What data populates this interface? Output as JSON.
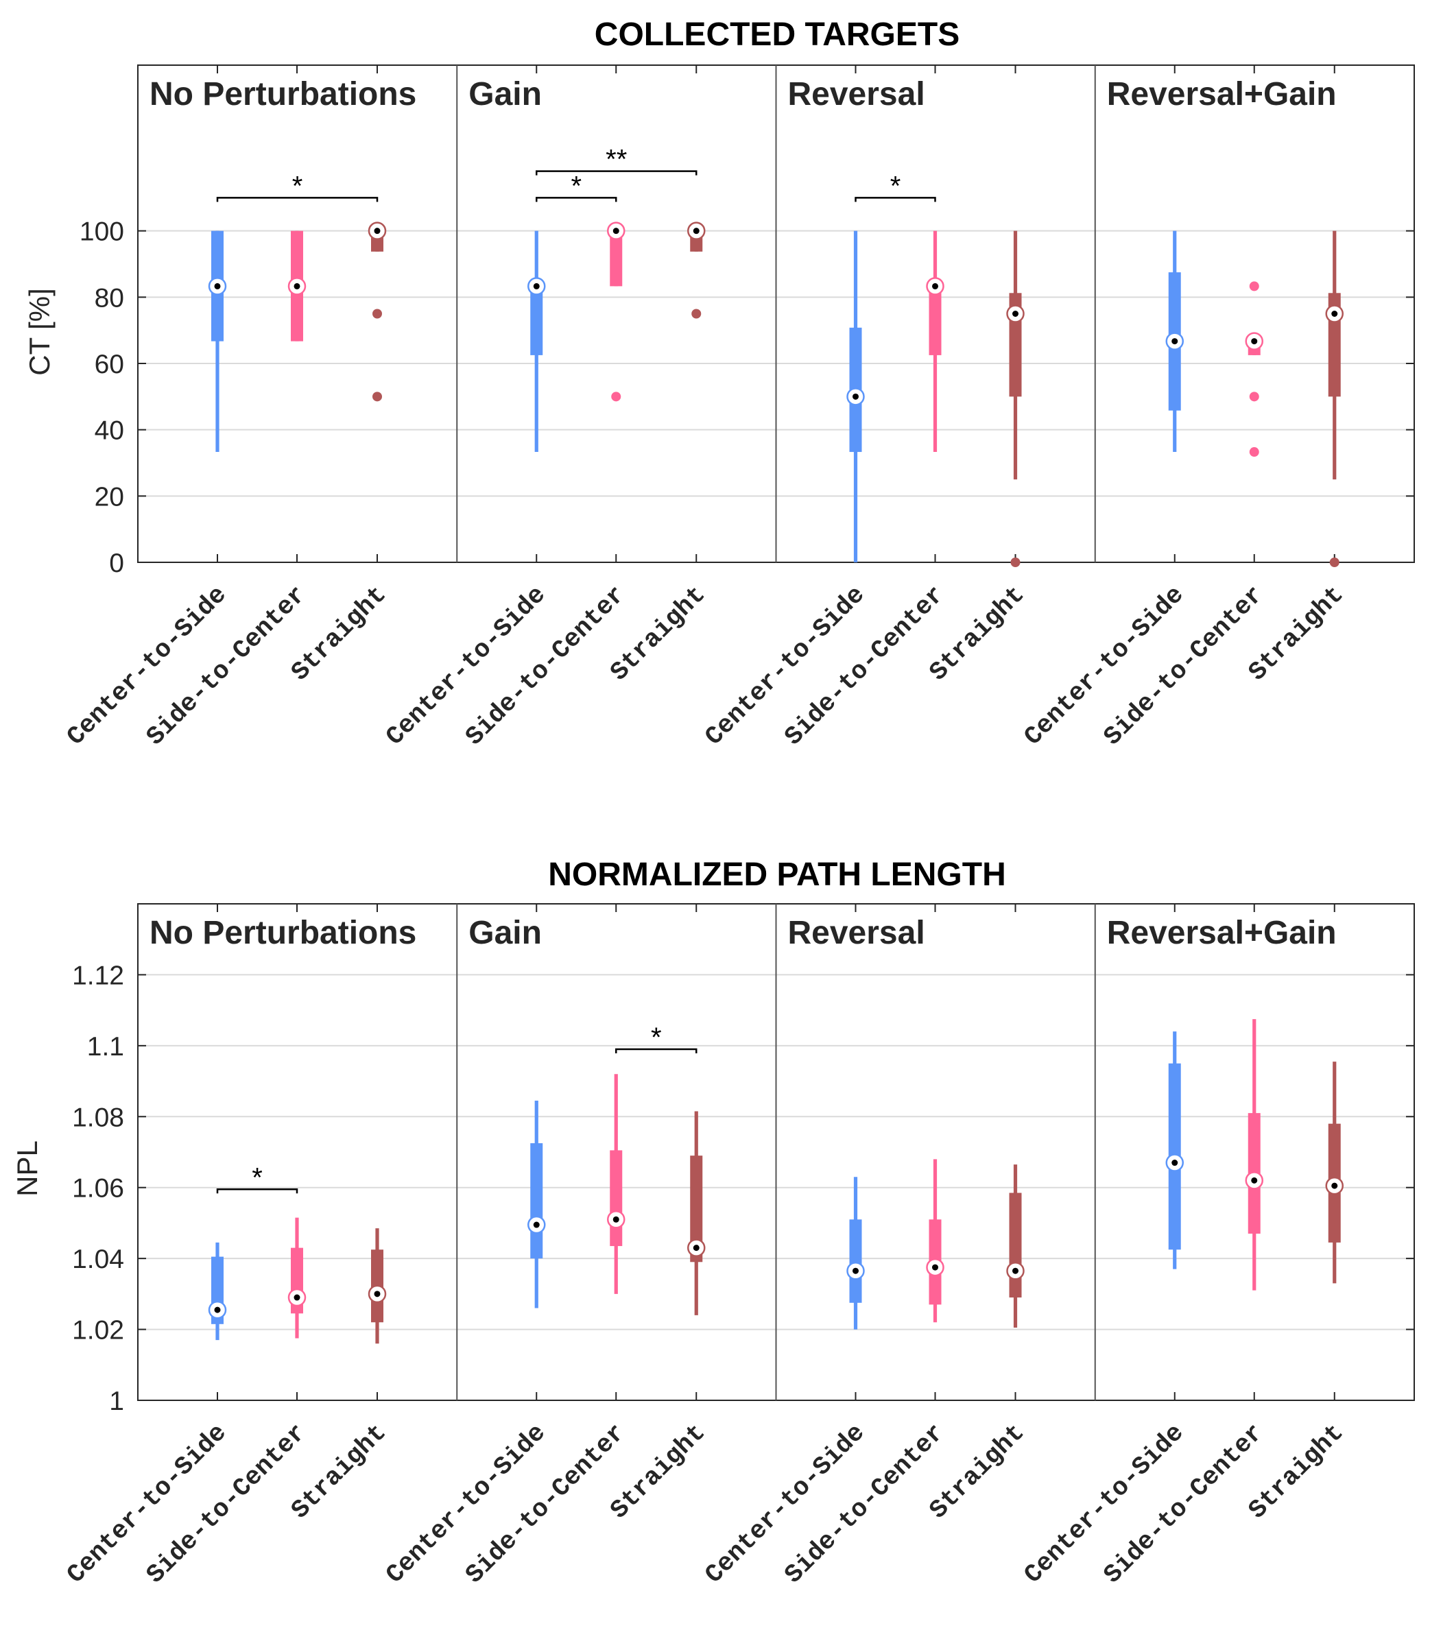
{
  "colors": {
    "Center-to-Side": "#5b95f9",
    "Side-to-Center": "#ff6396",
    "Straight": "#b05656",
    "grid": "#dadada",
    "axis": "#262626"
  },
  "chart_data": [
    {
      "type": "boxplot",
      "title": "COLLECTED TARGETS",
      "ylabel": "CT [%]",
      "ylim": [
        0,
        150
      ],
      "yticks": [
        "0",
        "20",
        "40",
        "60",
        "80",
        "100"
      ],
      "ytick_values": [
        0,
        20,
        40,
        60,
        80,
        100
      ],
      "categories": [
        "Center-to-Side",
        "Side-to-Center",
        "Straight"
      ],
      "panels": [
        {
          "label": "No Perturbations",
          "boxes": [
            {
              "name": "Center-to-Side",
              "whisker_low": 33.3,
              "q1": 66.7,
              "median": 83.3,
              "q3": 100,
              "whisker_high": 100,
              "outliers": []
            },
            {
              "name": "Side-to-Center",
              "whisker_low": 66.7,
              "q1": 66.7,
              "median": 83.3,
              "q3": 100,
              "whisker_high": 100,
              "outliers": []
            },
            {
              "name": "Straight",
              "whisker_low": 93.75,
              "q1": 93.75,
              "median": 100,
              "q3": 100,
              "whisker_high": 100,
              "outliers": [
                75,
                50
              ]
            }
          ],
          "significance": [
            {
              "from": 0,
              "to": 2,
              "label": "*",
              "level": 110
            }
          ]
        },
        {
          "label": "Gain",
          "boxes": [
            {
              "name": "Center-to-Side",
              "whisker_low": 33.3,
              "q1": 62.5,
              "median": 83.3,
              "q3": 83.3,
              "whisker_high": 100,
              "outliers": []
            },
            {
              "name": "Side-to-Center",
              "whisker_low": 83.3,
              "q1": 83.3,
              "median": 100,
              "q3": 100,
              "whisker_high": 100,
              "outliers": [
                50
              ]
            },
            {
              "name": "Straight",
              "whisker_low": 93.75,
              "q1": 93.75,
              "median": 100,
              "q3": 100,
              "whisker_high": 100,
              "outliers": [
                75
              ]
            }
          ],
          "significance": [
            {
              "from": 0,
              "to": 1,
              "label": "*",
              "level": 110
            },
            {
              "from": 0,
              "to": 2,
              "label": "**",
              "level": 118
            }
          ]
        },
        {
          "label": "Reversal",
          "boxes": [
            {
              "name": "Center-to-Side",
              "whisker_low": 0,
              "q1": 33.3,
              "median": 50,
              "q3": 70.8,
              "whisker_high": 100,
              "outliers": []
            },
            {
              "name": "Side-to-Center",
              "whisker_low": 33.3,
              "q1": 62.5,
              "median": 83.3,
              "q3": 83.3,
              "whisker_high": 100,
              "outliers": []
            },
            {
              "name": "Straight",
              "whisker_low": 25,
              "q1": 50,
              "median": 75,
              "q3": 81.25,
              "whisker_high": 100,
              "outliers": [
                0
              ]
            }
          ],
          "significance": [
            {
              "from": 0,
              "to": 1,
              "label": "*",
              "level": 110
            }
          ]
        },
        {
          "label": "Reversal+Gain",
          "boxes": [
            {
              "name": "Center-to-Side",
              "whisker_low": 33.3,
              "q1": 45.8,
              "median": 66.7,
              "q3": 87.5,
              "whisker_high": 100,
              "outliers": []
            },
            {
              "name": "Side-to-Center",
              "whisker_low": 62.5,
              "q1": 62.5,
              "median": 66.7,
              "q3": 66.7,
              "whisker_high": 66.7,
              "outliers": [
                83.3,
                50,
                33.3
              ]
            },
            {
              "name": "Straight",
              "whisker_low": 25,
              "q1": 50,
              "median": 75,
              "q3": 81.25,
              "whisker_high": 100,
              "outliers": [
                0
              ]
            }
          ],
          "significance": []
        }
      ]
    },
    {
      "type": "boxplot",
      "title": "NORMALIZED PATH LENGTH",
      "ylabel": "NPL",
      "ylim": [
        1,
        1.14
      ],
      "yticks": [
        "1",
        "1.02",
        "1.04",
        "1.06",
        "1.08",
        "1.1",
        "1.12"
      ],
      "ytick_values": [
        1,
        1.02,
        1.04,
        1.06,
        1.08,
        1.1,
        1.12
      ],
      "categories": [
        "Center-to-Side",
        "Side-to-Center",
        "Straight"
      ],
      "panels": [
        {
          "label": "No Perturbations",
          "boxes": [
            {
              "name": "Center-to-Side",
              "whisker_low": 1.017,
              "q1": 1.0215,
              "median": 1.0255,
              "q3": 1.0405,
              "whisker_high": 1.0445,
              "outliers": []
            },
            {
              "name": "Side-to-Center",
              "whisker_low": 1.0175,
              "q1": 1.0245,
              "median": 1.029,
              "q3": 1.043,
              "whisker_high": 1.0515,
              "outliers": []
            },
            {
              "name": "Straight",
              "whisker_low": 1.016,
              "q1": 1.022,
              "median": 1.03,
              "q3": 1.0425,
              "whisker_high": 1.0485,
              "outliers": []
            }
          ],
          "significance": [
            {
              "from": 0,
              "to": 1,
              "label": "*",
              "level": 1.0595
            }
          ]
        },
        {
          "label": "Gain",
          "boxes": [
            {
              "name": "Center-to-Side",
              "whisker_low": 1.026,
              "q1": 1.04,
              "median": 1.0495,
              "q3": 1.0725,
              "whisker_high": 1.0845,
              "outliers": []
            },
            {
              "name": "Side-to-Center",
              "whisker_low": 1.03,
              "q1": 1.0435,
              "median": 1.051,
              "q3": 1.0705,
              "whisker_high": 1.092,
              "outliers": []
            },
            {
              "name": "Straight",
              "whisker_low": 1.024,
              "q1": 1.039,
              "median": 1.043,
              "q3": 1.069,
              "whisker_high": 1.0815,
              "outliers": []
            }
          ],
          "significance": [
            {
              "from": 1,
              "to": 2,
              "label": "*",
              "level": 1.099
            }
          ]
        },
        {
          "label": "Reversal",
          "boxes": [
            {
              "name": "Center-to-Side",
              "whisker_low": 1.02,
              "q1": 1.0275,
              "median": 1.0365,
              "q3": 1.051,
              "whisker_high": 1.063,
              "outliers": []
            },
            {
              "name": "Side-to-Center",
              "whisker_low": 1.022,
              "q1": 1.027,
              "median": 1.0375,
              "q3": 1.051,
              "whisker_high": 1.068,
              "outliers": []
            },
            {
              "name": "Straight",
              "whisker_low": 1.0205,
              "q1": 1.029,
              "median": 1.0365,
              "q3": 1.0585,
              "whisker_high": 1.0665,
              "outliers": []
            }
          ],
          "significance": []
        },
        {
          "label": "Reversal+Gain",
          "boxes": [
            {
              "name": "Center-to-Side",
              "whisker_low": 1.037,
              "q1": 1.0425,
              "median": 1.067,
              "q3": 1.095,
              "whisker_high": 1.104,
              "outliers": []
            },
            {
              "name": "Side-to-Center",
              "whisker_low": 1.031,
              "q1": 1.047,
              "median": 1.062,
              "q3": 1.081,
              "whisker_high": 1.1075,
              "outliers": []
            },
            {
              "name": "Straight",
              "whisker_low": 1.033,
              "q1": 1.0445,
              "median": 1.0605,
              "q3": 1.078,
              "whisker_high": 1.0955,
              "outliers": []
            }
          ],
          "significance": []
        }
      ]
    }
  ]
}
